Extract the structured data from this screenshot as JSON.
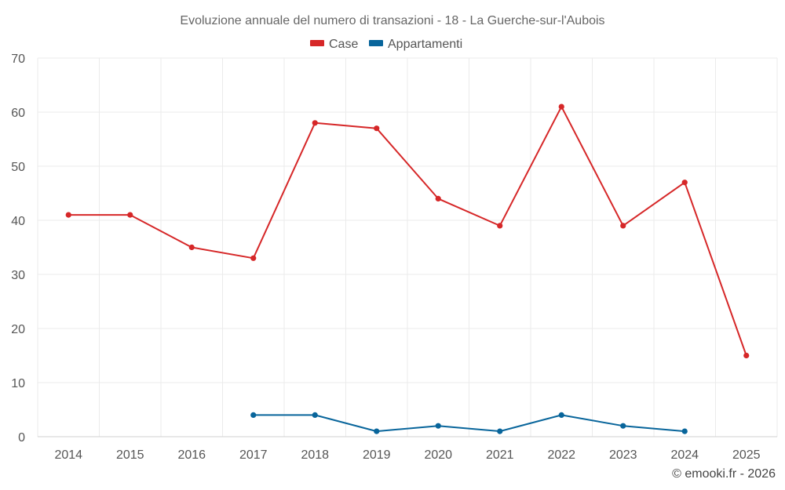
{
  "chart_data": {
    "type": "line",
    "title": "Evoluzione annuale del numero di transazioni - 18 - La Guerche-sur-l'Aubois",
    "categories": [
      "2014",
      "2015",
      "2016",
      "2017",
      "2018",
      "2019",
      "2020",
      "2021",
      "2022",
      "2023",
      "2024",
      "2025"
    ],
    "series": [
      {
        "name": "Case",
        "color": "#d62728",
        "values": [
          41,
          41,
          35,
          33,
          58,
          57,
          44,
          39,
          61,
          39,
          47,
          15
        ]
      },
      {
        "name": "Appartamenti",
        "color": "#08659b",
        "values": [
          null,
          null,
          null,
          4,
          4,
          1,
          2,
          1,
          4,
          2,
          1,
          null
        ]
      }
    ],
    "ylim": [
      0,
      70
    ],
    "yticks": [
      "0",
      "10",
      "20",
      "30",
      "40",
      "50",
      "60",
      "70"
    ],
    "grid": true,
    "legend_position": "top-center"
  },
  "credit": "© emooki.fr - 2026"
}
